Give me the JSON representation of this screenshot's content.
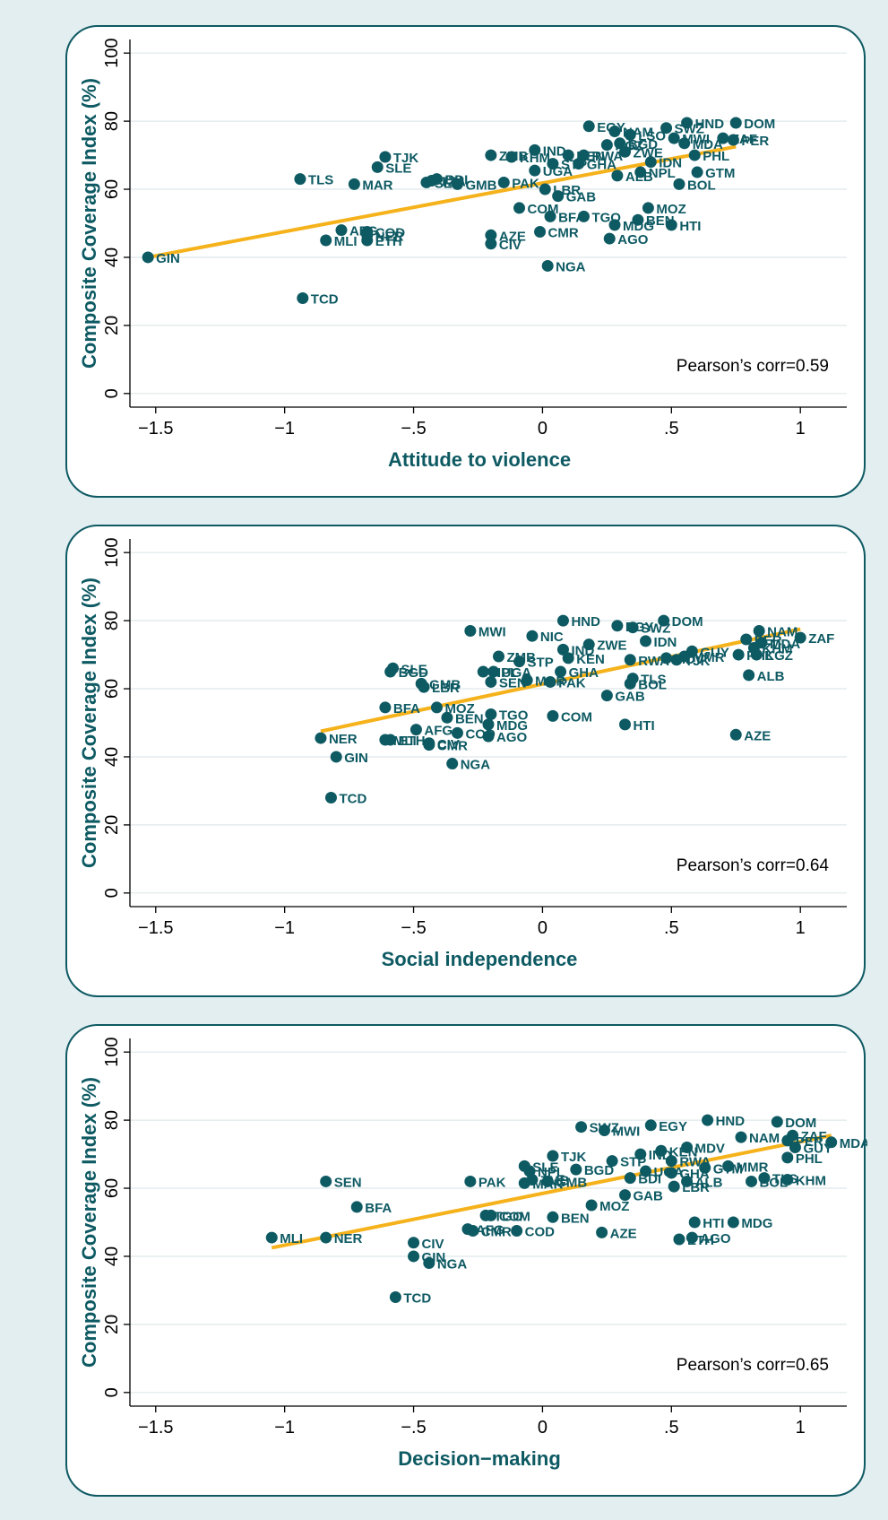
{
  "chart_data": [
    {
      "type": "scatter",
      "title": "",
      "xlabel": "Attitude to violence",
      "ylabel": "Composite Coverage Index (%)",
      "xlim": [
        -1.6,
        1.18
      ],
      "ylim": [
        -4,
        104
      ],
      "xticks": [
        -1.5,
        -1,
        -0.5,
        0,
        0.5,
        1
      ],
      "xtick_labels": [
        "-1.5",
        "-1",
        "-.5",
        "0",
        ".5",
        "1"
      ],
      "yticks": [
        0,
        20,
        40,
        60,
        80,
        100
      ],
      "ytick_labels": [
        "0",
        "20",
        "40",
        "60",
        "80",
        "100"
      ],
      "grid": "horizontal",
      "annotation": "Pearson’s corr=0.59",
      "fit_line": {
        "x": [
          -1.53,
          0.75
        ],
        "y": [
          40,
          72.5
        ]
      },
      "points": [
        {
          "label": "GIN",
          "x": -1.53,
          "y": 40
        },
        {
          "label": "TCD",
          "x": -0.93,
          "y": 28
        },
        {
          "label": "TLS",
          "x": -0.94,
          "y": 63
        },
        {
          "label": "MLI",
          "x": -0.84,
          "y": 45
        },
        {
          "label": "AFG",
          "x": -0.78,
          "y": 48
        },
        {
          "label": "MAR",
          "x": -0.73,
          "y": 61.5
        },
        {
          "label": "ETH",
          "x": -0.68,
          "y": 45
        },
        {
          "label": "NER",
          "x": -0.68,
          "y": 46.5
        },
        {
          "label": "COD",
          "x": -0.68,
          "y": 47.5
        },
        {
          "label": "TJK",
          "x": -0.61,
          "y": 69.5
        },
        {
          "label": "SLE",
          "x": -0.64,
          "y": 66.5
        },
        {
          "label": "SEN",
          "x": -0.45,
          "y": 62
        },
        {
          "label": "TZA",
          "x": -0.43,
          "y": 62.5
        },
        {
          "label": "BDI",
          "x": -0.41,
          "y": 63
        },
        {
          "label": "GMB",
          "x": -0.33,
          "y": 61.5
        },
        {
          "label": "ZMB",
          "x": -0.2,
          "y": 70
        },
        {
          "label": "PAK",
          "x": -0.15,
          "y": 62
        },
        {
          "label": "KHM",
          "x": -0.12,
          "y": 69.5
        },
        {
          "label": "AZE",
          "x": -0.2,
          "y": 46.5
        },
        {
          "label": "CIV",
          "x": -0.2,
          "y": 44
        },
        {
          "label": "COM",
          "x": -0.09,
          "y": 54.5
        },
        {
          "label": "IND",
          "x": -0.03,
          "y": 71.5
        },
        {
          "label": "UGA",
          "x": -0.03,
          "y": 65.5
        },
        {
          "label": "CMR",
          "x": -0.01,
          "y": 47.5
        },
        {
          "label": "BFA",
          "x": 0.03,
          "y": 52
        },
        {
          "label": "NGA",
          "x": 0.02,
          "y": 37.5
        },
        {
          "label": "LBR",
          "x": 0.01,
          "y": 60
        },
        {
          "label": "STP",
          "x": 0.04,
          "y": 67.5
        },
        {
          "label": "GAB",
          "x": 0.06,
          "y": 58
        },
        {
          "label": "KEN",
          "x": 0.1,
          "y": 70
        },
        {
          "label": "GHA",
          "x": 0.14,
          "y": 67.5
        },
        {
          "label": "TGO",
          "x": 0.16,
          "y": 52
        },
        {
          "label": "RWA",
          "x": 0.16,
          "y": 70
        },
        {
          "label": "EGY",
          "x": 0.18,
          "y": 78.5
        },
        {
          "label": "KGZ",
          "x": 0.25,
          "y": 73
        },
        {
          "label": "AGO",
          "x": 0.26,
          "y": 45.5
        },
        {
          "label": "MDG",
          "x": 0.28,
          "y": 49.5
        },
        {
          "label": "ALB",
          "x": 0.29,
          "y": 64
        },
        {
          "label": "BGD",
          "x": 0.3,
          "y": 73.5
        },
        {
          "label": "ZWE",
          "x": 0.32,
          "y": 71
        },
        {
          "label": "NAM",
          "x": 0.28,
          "y": 77
        },
        {
          "label": "LSO",
          "x": 0.34,
          "y": 76
        },
        {
          "label": "BEN",
          "x": 0.37,
          "y": 51
        },
        {
          "label": "NPL",
          "x": 0.38,
          "y": 65
        },
        {
          "label": "IDN",
          "x": 0.42,
          "y": 68
        },
        {
          "label": "MOZ",
          "x": 0.41,
          "y": 54.5
        },
        {
          "label": "HTI",
          "x": 0.5,
          "y": 49.5
        },
        {
          "label": "SWZ",
          "x": 0.48,
          "y": 78
        },
        {
          "label": "HND",
          "x": 0.56,
          "y": 79.5
        },
        {
          "label": "MWI",
          "x": 0.51,
          "y": 75
        },
        {
          "label": "PHL",
          "x": 0.59,
          "y": 70
        },
        {
          "label": "BOL",
          "x": 0.53,
          "y": 61.5
        },
        {
          "label": "GTM",
          "x": 0.6,
          "y": 65
        },
        {
          "label": "MDA",
          "x": 0.55,
          "y": 73.5
        },
        {
          "label": "DOM",
          "x": 0.75,
          "y": 79.5
        },
        {
          "label": "ZAF",
          "x": 0.7,
          "y": 75
        },
        {
          "label": "PER",
          "x": 0.74,
          "y": 74.5
        }
      ]
    },
    {
      "type": "scatter",
      "title": "",
      "xlabel": "Social independence",
      "ylabel": "Composite Coverage Index (%)",
      "xlim": [
        -1.6,
        1.18
      ],
      "ylim": [
        -4,
        104
      ],
      "xticks": [
        -1.5,
        -1,
        -0.5,
        0,
        0.5,
        1
      ],
      "xtick_labels": [
        "-1.5",
        "-1",
        "-.5",
        "0",
        ".5",
        "1"
      ],
      "yticks": [
        0,
        20,
        40,
        60,
        80,
        100
      ],
      "ytick_labels": [
        "0",
        "20",
        "40",
        "60",
        "80",
        "100"
      ],
      "grid": "horizontal",
      "annotation": "Pearson’s corr=0.64",
      "fit_line": {
        "x": [
          -0.86,
          1.0
        ],
        "y": [
          47.5,
          77.5
        ]
      },
      "points": [
        {
          "label": "NER",
          "x": -0.86,
          "y": 45.5
        },
        {
          "label": "TCD",
          "x": -0.82,
          "y": 28
        },
        {
          "label": "GIN",
          "x": -0.8,
          "y": 40
        },
        {
          "label": "MLI",
          "x": -0.61,
          "y": 45
        },
        {
          "label": "ETH",
          "x": -0.59,
          "y": 45
        },
        {
          "label": "BFA",
          "x": -0.61,
          "y": 54.5
        },
        {
          "label": "SLE",
          "x": -0.58,
          "y": 66
        },
        {
          "label": "BGD",
          "x": -0.59,
          "y": 65
        },
        {
          "label": "LBR",
          "x": -0.46,
          "y": 60.5
        },
        {
          "label": "GMB",
          "x": -0.47,
          "y": 61.5
        },
        {
          "label": "AFG",
          "x": -0.49,
          "y": 48
        },
        {
          "label": "CMR",
          "x": -0.44,
          "y": 43.5
        },
        {
          "label": "CIV",
          "x": -0.44,
          "y": 44
        },
        {
          "label": "MOZ",
          "x": -0.41,
          "y": 54.5
        },
        {
          "label": "BEN",
          "x": -0.37,
          "y": 51.5
        },
        {
          "label": "NGA",
          "x": -0.35,
          "y": 38
        },
        {
          "label": "COD",
          "x": -0.33,
          "y": 47
        },
        {
          "label": "MWI",
          "x": -0.28,
          "y": 77
        },
        {
          "label": "ZMB",
          "x": -0.17,
          "y": 69.5
        },
        {
          "label": "NPL",
          "x": -0.23,
          "y": 65
        },
        {
          "label": "SEN",
          "x": -0.2,
          "y": 62
        },
        {
          "label": "UGA",
          "x": -0.19,
          "y": 65
        },
        {
          "label": "TGO",
          "x": -0.2,
          "y": 52.5
        },
        {
          "label": "MDG",
          "x": -0.21,
          "y": 49.5
        },
        {
          "label": "AGO",
          "x": -0.21,
          "y": 46
        },
        {
          "label": "STP",
          "x": -0.09,
          "y": 68
        },
        {
          "label": "NIC",
          "x": -0.04,
          "y": 75.5
        },
        {
          "label": "MAR",
          "x": -0.06,
          "y": 62.5
        },
        {
          "label": "PAK",
          "x": 0.03,
          "y": 62
        },
        {
          "label": "COM",
          "x": 0.04,
          "y": 52
        },
        {
          "label": "GHA",
          "x": 0.07,
          "y": 65
        },
        {
          "label": "HND",
          "x": 0.08,
          "y": 80
        },
        {
          "label": "IND",
          "x": 0.08,
          "y": 71.5
        },
        {
          "label": "KEN",
          "x": 0.1,
          "y": 69
        },
        {
          "label": "ZWE",
          "x": 0.18,
          "y": 73
        },
        {
          "label": "GAB",
          "x": 0.25,
          "y": 58
        },
        {
          "label": "EGY",
          "x": 0.29,
          "y": 78.5
        },
        {
          "label": "SWZ",
          "x": 0.35,
          "y": 78
        },
        {
          "label": "RWA",
          "x": 0.34,
          "y": 68.5
        },
        {
          "label": "TLS",
          "x": 0.35,
          "y": 63
        },
        {
          "label": "BOL",
          "x": 0.34,
          "y": 61.5
        },
        {
          "label": "HTI",
          "x": 0.32,
          "y": 49.5
        },
        {
          "label": "IDN",
          "x": 0.4,
          "y": 74
        },
        {
          "label": "DOM",
          "x": 0.47,
          "y": 80
        },
        {
          "label": "MDV",
          "x": 0.48,
          "y": 69
        },
        {
          "label": "TJK",
          "x": 0.52,
          "y": 68.5
        },
        {
          "label": "MMR",
          "x": 0.55,
          "y": 69.5
        },
        {
          "label": "GUY",
          "x": 0.58,
          "y": 71
        },
        {
          "label": "PHL",
          "x": 0.76,
          "y": 70
        },
        {
          "label": "PER",
          "x": 0.79,
          "y": 74.5
        },
        {
          "label": "AZE",
          "x": 0.75,
          "y": 46.5
        },
        {
          "label": "ALB",
          "x": 0.8,
          "y": 64
        },
        {
          "label": "KGZ",
          "x": 0.83,
          "y": 70
        },
        {
          "label": "KHM",
          "x": 0.82,
          "y": 72
        },
        {
          "label": "NAM",
          "x": 0.84,
          "y": 77
        },
        {
          "label": "MDA",
          "x": 0.85,
          "y": 73.5
        },
        {
          "label": "ZAF",
          "x": 1.0,
          "y": 75
        }
      ]
    },
    {
      "type": "scatter",
      "title": "",
      "xlabel": "Decision−making",
      "ylabel": "Composite Coverage Index (%)",
      "xlim": [
        -1.6,
        1.18
      ],
      "ylim": [
        -4,
        104
      ],
      "xticks": [
        -1.5,
        -1,
        -0.5,
        0,
        0.5,
        1
      ],
      "xtick_labels": [
        "-1.5",
        "-1",
        "-.5",
        "0",
        ".5",
        "1"
      ],
      "yticks": [
        0,
        20,
        40,
        60,
        80,
        100
      ],
      "ytick_labels": [
        "0",
        "20",
        "40",
        "60",
        "80",
        "100"
      ],
      "grid": "horizontal",
      "annotation": "Pearson’s corr=0.65",
      "fit_line": {
        "x": [
          -1.05,
          1.12
        ],
        "y": [
          42.5,
          75.5
        ]
      },
      "points": [
        {
          "label": "MLI",
          "x": -1.05,
          "y": 45.5
        },
        {
          "label": "NER",
          "x": -0.84,
          "y": 45.5
        },
        {
          "label": "SEN",
          "x": -0.84,
          "y": 62
        },
        {
          "label": "BFA",
          "x": -0.72,
          "y": 54.5
        },
        {
          "label": "TCD",
          "x": -0.57,
          "y": 28
        },
        {
          "label": "CIV",
          "x": -0.5,
          "y": 44
        },
        {
          "label": "GIN",
          "x": -0.5,
          "y": 40
        },
        {
          "label": "NGA",
          "x": -0.44,
          "y": 38
        },
        {
          "label": "AFG",
          "x": -0.29,
          "y": 48
        },
        {
          "label": "CMR",
          "x": -0.27,
          "y": 47.5
        },
        {
          "label": "PAK",
          "x": -0.28,
          "y": 62
        },
        {
          "label": "TGO",
          "x": -0.22,
          "y": 52
        },
        {
          "label": "COM",
          "x": -0.2,
          "y": 52
        },
        {
          "label": "COD",
          "x": -0.1,
          "y": 47.5
        },
        {
          "label": "MAR",
          "x": -0.07,
          "y": 61.5
        },
        {
          "label": "SLE",
          "x": -0.07,
          "y": 66.5
        },
        {
          "label": "NPL",
          "x": -0.05,
          "y": 65
        },
        {
          "label": "ZMB",
          "x": -0.04,
          "y": 62.5
        },
        {
          "label": "GMB",
          "x": 0.02,
          "y": 62
        },
        {
          "label": "BEN",
          "x": 0.04,
          "y": 51.5
        },
        {
          "label": "TJK",
          "x": 0.04,
          "y": 69.5
        },
        {
          "label": "BGD",
          "x": 0.13,
          "y": 65.5
        },
        {
          "label": "SWZ",
          "x": 0.15,
          "y": 78
        },
        {
          "label": "MOZ",
          "x": 0.19,
          "y": 55
        },
        {
          "label": "AZE",
          "x": 0.23,
          "y": 47
        },
        {
          "label": "MWI",
          "x": 0.24,
          "y": 77
        },
        {
          "label": "STP",
          "x": 0.27,
          "y": 68
        },
        {
          "label": "GAB",
          "x": 0.32,
          "y": 58
        },
        {
          "label": "BDI",
          "x": 0.34,
          "y": 63
        },
        {
          "label": "IND",
          "x": 0.38,
          "y": 70
        },
        {
          "label": "EGY",
          "x": 0.42,
          "y": 78.5
        },
        {
          "label": "UGA",
          "x": 0.4,
          "y": 65
        },
        {
          "label": "KEN",
          "x": 0.46,
          "y": 71
        },
        {
          "label": "RWA",
          "x": 0.5,
          "y": 68
        },
        {
          "label": "LBR",
          "x": 0.51,
          "y": 60.5
        },
        {
          "label": "GHA",
          "x": 0.5,
          "y": 64.5
        },
        {
          "label": "ALB",
          "x": 0.56,
          "y": 62
        },
        {
          "label": "ETH",
          "x": 0.53,
          "y": 45
        },
        {
          "label": "AGO",
          "x": 0.58,
          "y": 45.5
        },
        {
          "label": "HTI",
          "x": 0.59,
          "y": 50
        },
        {
          "label": "MDV",
          "x": 0.56,
          "y": 72
        },
        {
          "label": "GTM",
          "x": 0.63,
          "y": 66
        },
        {
          "label": "HND",
          "x": 0.64,
          "y": 80
        },
        {
          "label": "MMR",
          "x": 0.72,
          "y": 66.5
        },
        {
          "label": "MDG",
          "x": 0.74,
          "y": 50
        },
        {
          "label": "NAM",
          "x": 0.77,
          "y": 75
        },
        {
          "label": "BOL",
          "x": 0.81,
          "y": 62
        },
        {
          "label": "DOM",
          "x": 0.91,
          "y": 79.5
        },
        {
          "label": "TLS",
          "x": 0.86,
          "y": 63
        },
        {
          "label": "KHM",
          "x": 0.95,
          "y": 62.5
        },
        {
          "label": "PHL",
          "x": 0.95,
          "y": 69
        },
        {
          "label": "PER",
          "x": 0.95,
          "y": 74
        },
        {
          "label": "GUY",
          "x": 0.98,
          "y": 72
        },
        {
          "label": "ZAF",
          "x": 0.97,
          "y": 75.5
        },
        {
          "label": "MDA",
          "x": 1.12,
          "y": 73.5
        }
      ]
    }
  ]
}
